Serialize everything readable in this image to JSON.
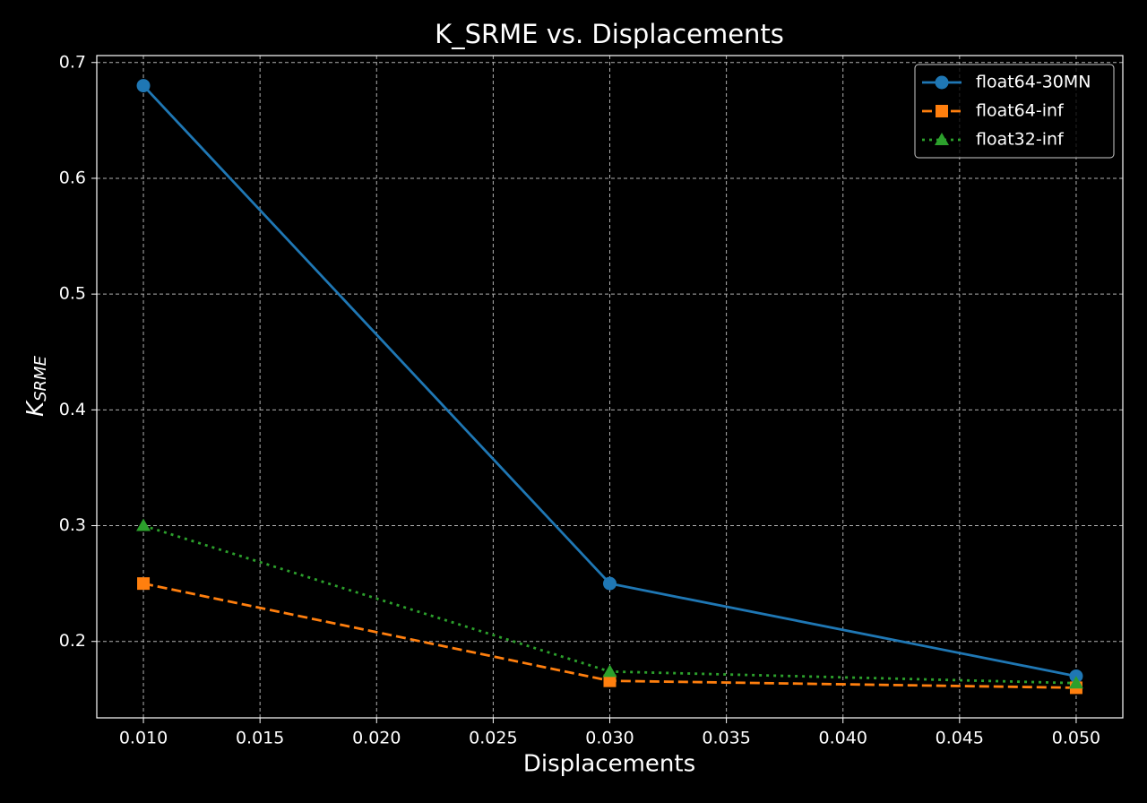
{
  "chart_data": {
    "type": "line",
    "title": "K_SRME vs. Displacements",
    "x_label": "Displacements",
    "y_label": {
      "main": "K",
      "sub": "SRME"
    },
    "x": [
      0.01,
      0.03,
      0.05
    ],
    "series": [
      {
        "name": "float64-30MN",
        "color": "#1f77b4",
        "marker": "circle",
        "linestyle": "solid",
        "values": [
          0.68,
          0.25,
          0.17
        ]
      },
      {
        "name": "float64-inf",
        "color": "#ff7f0e",
        "marker": "square",
        "linestyle": "dashed",
        "values": [
          0.25,
          0.166,
          0.16
        ]
      },
      {
        "name": "float32-inf",
        "color": "#2ca02c",
        "marker": "triangle",
        "linestyle": "dotted",
        "values": [
          0.3,
          0.174,
          0.164
        ]
      }
    ],
    "xlim": [
      0.008,
      0.052
    ],
    "ylim": [
      0.134,
      0.706
    ],
    "xticks": [
      {
        "value": 0.01,
        "label": "0.010"
      },
      {
        "value": 0.015,
        "label": "0.015"
      },
      {
        "value": 0.02,
        "label": "0.020"
      },
      {
        "value": 0.025,
        "label": "0.025"
      },
      {
        "value": 0.03,
        "label": "0.030"
      },
      {
        "value": 0.035,
        "label": "0.035"
      },
      {
        "value": 0.04,
        "label": "0.040"
      },
      {
        "value": 0.045,
        "label": "0.045"
      },
      {
        "value": 0.05,
        "label": "0.050"
      }
    ],
    "yticks": [
      0.2,
      0.3,
      0.4,
      0.5,
      0.6,
      0.7
    ],
    "grid": true,
    "legend": "upper-right"
  }
}
